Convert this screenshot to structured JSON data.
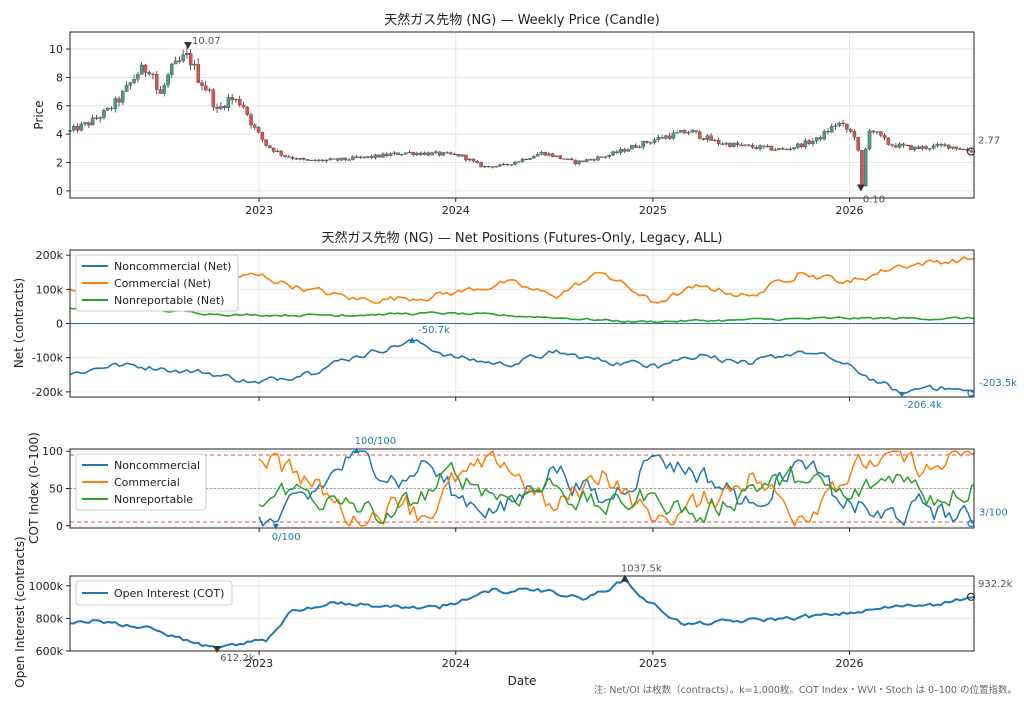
{
  "colors": {
    "noncommercial": "#1f77b4",
    "commercial": "#ff7f0e",
    "nonreportable": "#2ca02c",
    "candle_up": "#4c9a8a",
    "candle_down": "#d9534f",
    "wick": "#333333",
    "threshold": "#d9534f",
    "midline": "#999999",
    "annotation": "#555555"
  },
  "footer_note": "注: Net/OI は枚数（contracts）。k=1,000枚。COT Index・WVI・Stoch は 0–100 の位置指数。",
  "xlabel": "Date",
  "x_ticks": [
    "2023",
    "2024",
    "2025",
    "2026"
  ],
  "chart_data": [
    {
      "type": "candlestick",
      "title": "天然ガス先物 (NG) — Weekly Price (Candle)",
      "ylabel": "Price",
      "ylim": [
        -0.5,
        11.2
      ],
      "y_ticks": [
        "0",
        "2",
        "4",
        "6",
        "8",
        "10"
      ],
      "annotations": {
        "high": "10.07",
        "low": "0.10",
        "last": "2.77"
      },
      "date_range": [
        "2022-01-15",
        "2026-08-20"
      ],
      "close_keypoints": [
        [
          "2022-01-15",
          4.2
        ],
        [
          "2022-02-20",
          4.8
        ],
        [
          "2022-03-25",
          5.6
        ],
        [
          "2022-04-20",
          6.6
        ],
        [
          "2022-05-20",
          8.3
        ],
        [
          "2022-06-15",
          8.8
        ],
        [
          "2022-06-29",
          6.5
        ],
        [
          "2022-07-20",
          8.4
        ],
        [
          "2022-08-22",
          9.6
        ],
        [
          "2022-09-10",
          8.0
        ],
        [
          "2022-10-01",
          6.9
        ],
        [
          "2022-10-15",
          5.6
        ],
        [
          "2022-11-05",
          6.5
        ],
        [
          "2022-12-01",
          6.2
        ],
        [
          "2022-12-20",
          4.6
        ],
        [
          "2023-01-15",
          3.2
        ],
        [
          "2023-02-15",
          2.5
        ],
        [
          "2023-04-01",
          2.1
        ],
        [
          "2023-06-01",
          2.2
        ],
        [
          "2023-08-01",
          2.4
        ],
        [
          "2023-10-01",
          2.7
        ],
        [
          "2023-12-01",
          2.6
        ],
        [
          "2024-01-10",
          2.5
        ],
        [
          "2024-02-20",
          1.7
        ],
        [
          "2024-04-01",
          1.8
        ],
        [
          "2024-06-10",
          2.7
        ],
        [
          "2024-08-10",
          2.0
        ],
        [
          "2024-10-10",
          2.5
        ],
        [
          "2024-12-01",
          3.2
        ],
        [
          "2025-01-20",
          3.8
        ],
        [
          "2025-03-10",
          4.2
        ],
        [
          "2025-05-01",
          3.4
        ],
        [
          "2025-07-01",
          3.1
        ],
        [
          "2025-09-01",
          2.9
        ],
        [
          "2025-11-01",
          3.6
        ],
        [
          "2025-12-10",
          4.8
        ],
        [
          "2026-01-15",
          3.8
        ],
        [
          "2026-01-22",
          0.1
        ],
        [
          "2026-02-05",
          4.5
        ],
        [
          "2026-03-15",
          3.3
        ],
        [
          "2026-05-01",
          3.0
        ],
        [
          "2026-07-01",
          3.2
        ],
        [
          "2026-08-20",
          2.77
        ]
      ]
    },
    {
      "type": "line",
      "title": "天然ガス先物 (NG) — Net Positions (Futures-Only, Legacy, ALL)",
      "ylabel": "Net (contracts)",
      "ylim": [
        -215,
        215
      ],
      "y_ticks": [
        "-200k",
        "-100k",
        "0",
        "100k",
        "200k"
      ],
      "series": [
        {
          "name": "Noncommercial (Net)",
          "keypoints": [
            [
              "2022-01-15",
              -150
            ],
            [
              "2022-04-01",
              -120
            ],
            [
              "2022-07-01",
              -130
            ],
            [
              "2022-10-01",
              -145
            ],
            [
              "2023-01-01",
              -175
            ],
            [
              "2023-04-01",
              -140
            ],
            [
              "2023-07-01",
              -95
            ],
            [
              "2023-10-12",
              -50.7
            ],
            [
              "2024-01-01",
              -100
            ],
            [
              "2024-04-01",
              -120
            ],
            [
              "2024-07-01",
              -85
            ],
            [
              "2024-10-01",
              -110
            ],
            [
              "2025-01-01",
              -120
            ],
            [
              "2025-04-01",
              -90
            ],
            [
              "2025-07-01",
              -120
            ],
            [
              "2025-10-01",
              -80
            ],
            [
              "2025-12-01",
              -105
            ],
            [
              "2026-03-01",
              -175
            ],
            [
              "2026-04-08",
              -206.4
            ],
            [
              "2026-06-01",
              -180
            ],
            [
              "2026-08-20",
              -203.5
            ]
          ]
        },
        {
          "name": "Commercial (Net)",
          "keypoints": [
            [
              "2022-01-15",
              100
            ],
            [
              "2022-04-01",
              70
            ],
            [
              "2022-07-01",
              110
            ],
            [
              "2022-10-01",
              130
            ],
            [
              "2023-01-01",
              140
            ],
            [
              "2023-04-01",
              100
            ],
            [
              "2023-07-01",
              70
            ],
            [
              "2023-10-01",
              75
            ],
            [
              "2024-01-01",
              90
            ],
            [
              "2024-04-01",
              120
            ],
            [
              "2024-07-01",
              80
            ],
            [
              "2024-10-01",
              150
            ],
            [
              "2025-01-01",
              60
            ],
            [
              "2025-04-01",
              110
            ],
            [
              "2025-07-01",
              80
            ],
            [
              "2025-10-01",
              150
            ],
            [
              "2026-01-01",
              120
            ],
            [
              "2026-04-01",
              170
            ],
            [
              "2026-08-20",
              190
            ]
          ]
        },
        {
          "name": "Nonreportable (Net)",
          "keypoints": [
            [
              "2022-01-15",
              45
            ],
            [
              "2022-06-01",
              40
            ],
            [
              "2022-12-01",
              25
            ],
            [
              "2023-06-01",
              25
            ],
            [
              "2023-12-01",
              30
            ],
            [
              "2024-06-01",
              20
            ],
            [
              "2024-12-01",
              5
            ],
            [
              "2025-06-01",
              10
            ],
            [
              "2025-12-01",
              15
            ],
            [
              "2026-08-20",
              15
            ]
          ]
        }
      ],
      "annotations": {
        "high": "-50.7k",
        "low": "-206.4k",
        "last": "-203.5k"
      }
    },
    {
      "type": "line",
      "ylabel": "COT Index (0–100)",
      "ylim": [
        -3,
        103
      ],
      "y_ticks": [
        "0",
        "50",
        "100"
      ],
      "start": "2023-01-01",
      "series": [
        {
          "name": "Noncommercial",
          "keypoints": [
            [
              "2023-01-01",
              12
            ],
            [
              "2023-02-01",
              4
            ],
            [
              "2023-04-01",
              35
            ],
            [
              "2023-07-01",
              100
            ],
            [
              "2023-10-01",
              60
            ],
            [
              "2023-11-01",
              90
            ],
            [
              "2024-01-01",
              40
            ],
            [
              "2024-04-01",
              20
            ],
            [
              "2024-07-01",
              80
            ],
            [
              "2024-10-01",
              30
            ],
            [
              "2025-01-01",
              95
            ],
            [
              "2025-04-01",
              70
            ],
            [
              "2025-07-01",
              30
            ],
            [
              "2025-10-01",
              90
            ],
            [
              "2025-12-01",
              40
            ],
            [
              "2026-03-01",
              10
            ],
            [
              "2026-06-01",
              25
            ],
            [
              "2026-08-20",
              3
            ]
          ]
        },
        {
          "name": "Commercial",
          "keypoints": [
            [
              "2023-01-01",
              90
            ],
            [
              "2023-02-01",
              98
            ],
            [
              "2023-04-01",
              60
            ],
            [
              "2023-07-01",
              5
            ],
            [
              "2023-10-01",
              40
            ],
            [
              "2023-11-01",
              10
            ],
            [
              "2024-01-01",
              60
            ],
            [
              "2024-04-01",
              85
            ],
            [
              "2024-07-01",
              20
            ],
            [
              "2024-10-01",
              75
            ],
            [
              "2025-01-01",
              5
            ],
            [
              "2025-04-01",
              30
            ],
            [
              "2025-07-01",
              70
            ],
            [
              "2025-10-01",
              10
            ],
            [
              "2025-12-01",
              60
            ],
            [
              "2026-03-01",
              90
            ],
            [
              "2026-06-01",
              75
            ],
            [
              "2026-08-20",
              97
            ]
          ]
        },
        {
          "name": "Nonreportable",
          "keypoints": [
            [
              "2023-01-01",
              28
            ],
            [
              "2023-03-01",
              50
            ],
            [
              "2023-06-01",
              30
            ],
            [
              "2023-09-01",
              10
            ],
            [
              "2024-01-01",
              70
            ],
            [
              "2024-04-01",
              40
            ],
            [
              "2024-07-01",
              55
            ],
            [
              "2024-10-01",
              20
            ],
            [
              "2025-01-01",
              45
            ],
            [
              "2025-04-01",
              10
            ],
            [
              "2025-07-01",
              55
            ],
            [
              "2025-10-01",
              60
            ],
            [
              "2026-01-01",
              35
            ],
            [
              "2026-04-01",
              70
            ],
            [
              "2026-06-01",
              40
            ],
            [
              "2026-08-20",
              55
            ]
          ]
        }
      ],
      "thresholds": [
        5,
        95
      ],
      "midline": 50,
      "annotations": {
        "high": "100/100",
        "low": "0/100",
        "last": "3/100"
      }
    },
    {
      "type": "line",
      "ylabel": "Open Interest (contracts)",
      "ylim": [
        600,
        1060
      ],
      "y_ticks": [
        "600k",
        "800k",
        "1000k"
      ],
      "series": [
        {
          "name": "Open Interest (COT)",
          "keypoints": [
            [
              "2022-01-15",
              770
            ],
            [
              "2022-03-01",
              790
            ],
            [
              "2022-05-01",
              760
            ],
            [
              "2022-07-01",
              720
            ],
            [
              "2022-09-01",
              650
            ],
            [
              "2022-10-15",
              612.2
            ],
            [
              "2022-12-01",
              640
            ],
            [
              "2023-01-15",
              660
            ],
            [
              "2023-03-01",
              850
            ],
            [
              "2023-06-01",
              900
            ],
            [
              "2023-09-01",
              870
            ],
            [
              "2023-12-01",
              860
            ],
            [
              "2024-03-01",
              960
            ],
            [
              "2024-06-01",
              980
            ],
            [
              "2024-09-01",
              920
            ],
            [
              "2024-11-10",
              1037.5
            ],
            [
              "2024-12-15",
              920
            ],
            [
              "2025-03-01",
              760
            ],
            [
              "2025-06-01",
              780
            ],
            [
              "2025-09-01",
              800
            ],
            [
              "2025-12-01",
              820
            ],
            [
              "2026-03-01",
              860
            ],
            [
              "2026-06-01",
              890
            ],
            [
              "2026-08-20",
              932.2
            ]
          ]
        }
      ],
      "annotations": {
        "high": "1037.5k",
        "low": "612.2k",
        "last": "932.2k"
      }
    }
  ]
}
